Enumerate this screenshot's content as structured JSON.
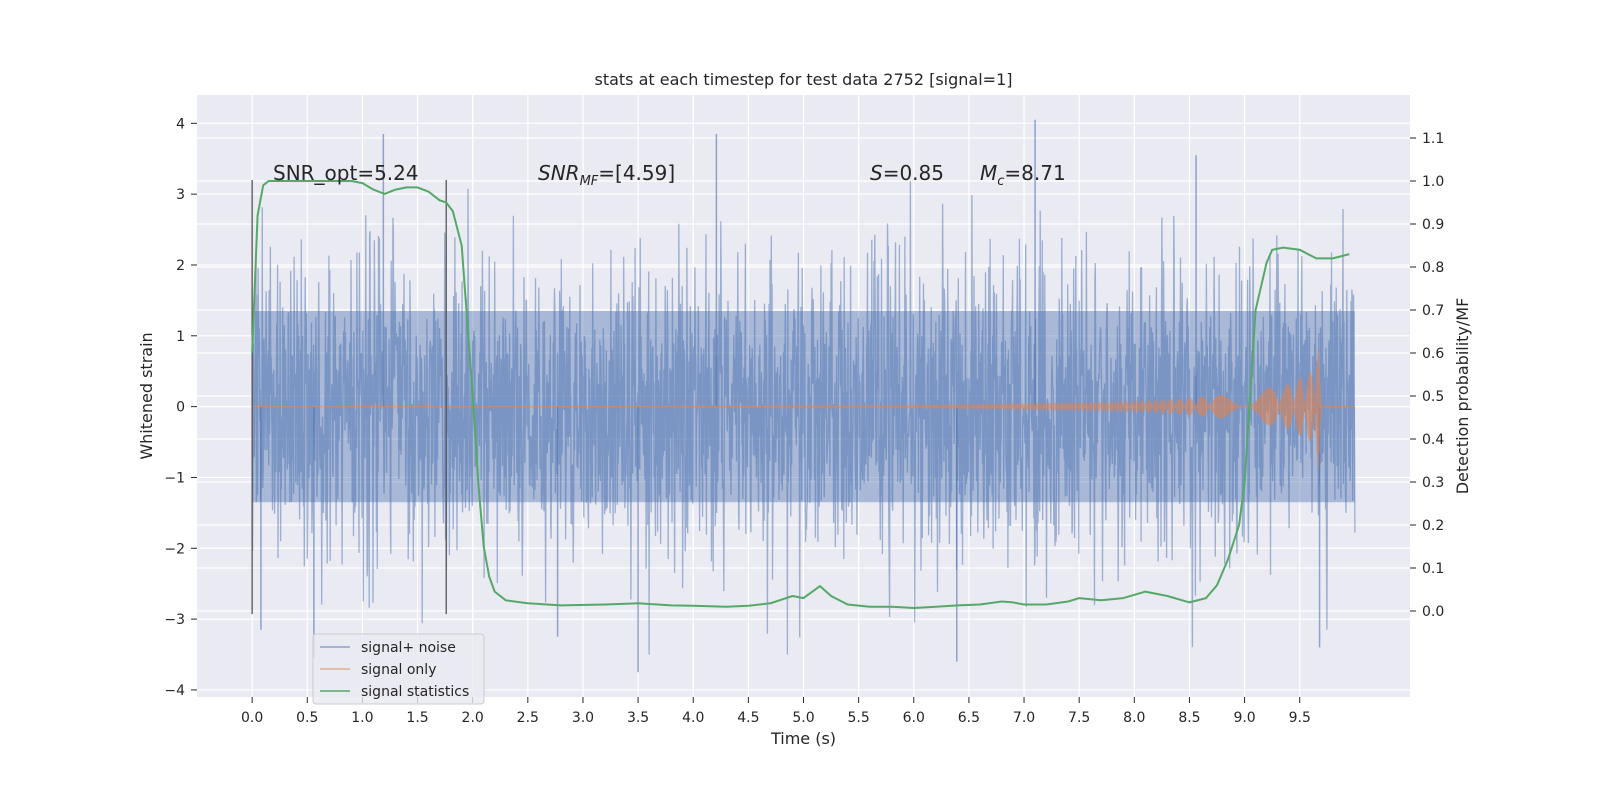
{
  "chart_data": {
    "type": "line",
    "title": "stats at each timestep for test data 2752 [signal=1]",
    "xlabel": "Time (s)",
    "ylabel": "Whitened strain",
    "y2label": "Detection probability/MF",
    "xlim": [
      -0.5,
      10.5
    ],
    "ylim": [
      -4.1,
      4.4
    ],
    "y2lim": [
      -0.2,
      1.2
    ],
    "xticks": [
      "0.0",
      "0.5",
      "1.0",
      "1.5",
      "2.0",
      "2.5",
      "3.0",
      "3.5",
      "4.0",
      "4.5",
      "5.0",
      "5.5",
      "6.0",
      "6.5",
      "7.0",
      "7.5",
      "8.0",
      "8.5",
      "9.0",
      "9.5"
    ],
    "yticks": [
      "4",
      "3",
      "2",
      "1",
      "0",
      "−1",
      "−2",
      "−3",
      "−4"
    ],
    "y2ticks": [
      "1.1",
      "1.0",
      "0.9",
      "0.8",
      "0.7",
      "0.6",
      "0.5",
      "0.4",
      "0.3",
      "0.2",
      "0.1",
      "0.0"
    ],
    "grid": true,
    "legend_position": "lower-left",
    "annotations": {
      "snr_opt": "SNR_opt=5.24",
      "snr_mf_base": "SNR",
      "snr_mf_sub": "MF",
      "snr_mf_val": "=[4.59]",
      "s_base": "S",
      "s_val": "=0.85",
      "mc_base": "M",
      "mc_sub": "c",
      "mc_val": "=8.71"
    },
    "vlines": [
      0.0,
      1.76
    ],
    "vline_ylim": [
      -2.93,
      3.2
    ],
    "series": [
      {
        "name": "signal+ noise",
        "color": "#4c72b0",
        "x_range": [
          0.0,
          10.0
        ],
        "envelope_sigma": 1.0,
        "peak_values": [
          {
            "x": 1.19,
            "y": 3.85
          },
          {
            "x": 4.21,
            "y": 3.85
          },
          {
            "x": 7.1,
            "y": 4.05
          },
          {
            "x": 8.56,
            "y": 3.55
          },
          {
            "x": 9.68,
            "y": -3.4
          },
          {
            "x": 3.5,
            "y": -3.75
          },
          {
            "x": 6.39,
            "y": -3.6
          },
          {
            "x": 0.08,
            "y": -3.15
          },
          {
            "x": 2.77,
            "y": -3.25
          },
          {
            "x": 0.56,
            "y": -3.55
          }
        ]
      },
      {
        "name": "signal only",
        "color": "#dd8452",
        "description_points": [
          {
            "x": 0.0,
            "amp": 0.0
          },
          {
            "x": 5.0,
            "amp": 0.01
          },
          {
            "x": 6.0,
            "amp": 0.02
          },
          {
            "x": 7.0,
            "amp": 0.05
          },
          {
            "x": 8.0,
            "amp": 0.08
          },
          {
            "x": 8.5,
            "amp": 0.12
          },
          {
            "x": 9.0,
            "amp": 0.2
          },
          {
            "x": 9.4,
            "amp": 0.32
          },
          {
            "x": 9.6,
            "amp": 0.5
          },
          {
            "x": 9.67,
            "amp": 0.85
          },
          {
            "x": 9.7,
            "amp": 0.02
          },
          {
            "x": 10.0,
            "amp": 0.0
          }
        ]
      },
      {
        "name": "signal statistics",
        "color": "#55a868",
        "axis": "right",
        "x": [
          0.0,
          0.05,
          0.1,
          0.15,
          0.2,
          0.3,
          0.4,
          0.5,
          0.7,
          0.9,
          1.0,
          1.1,
          1.2,
          1.3,
          1.4,
          1.5,
          1.6,
          1.7,
          1.76,
          1.82,
          1.9,
          2.0,
          2.05,
          2.1,
          2.15,
          2.2,
          2.3,
          2.5,
          2.8,
          3.2,
          3.5,
          3.8,
          4.0,
          4.3,
          4.5,
          4.7,
          4.9,
          5.0,
          5.15,
          5.25,
          5.4,
          5.6,
          5.8,
          6.0,
          6.2,
          6.4,
          6.6,
          6.8,
          6.9,
          7.0,
          7.2,
          7.4,
          7.5,
          7.7,
          7.9,
          8.1,
          8.3,
          8.5,
          8.65,
          8.75,
          8.85,
          8.95,
          9.0,
          9.05,
          9.1,
          9.2,
          9.25,
          9.35,
          9.5,
          9.65,
          9.8,
          9.95
        ],
        "y": [
          0.6,
          0.92,
          0.99,
          1.0,
          1.0,
          1.0,
          1.0,
          1.0,
          1.0,
          1.0,
          0.995,
          0.98,
          0.97,
          0.98,
          0.985,
          0.985,
          0.975,
          0.955,
          0.95,
          0.93,
          0.85,
          0.5,
          0.3,
          0.15,
          0.08,
          0.045,
          0.025,
          0.018,
          0.013,
          0.015,
          0.018,
          0.013,
          0.012,
          0.01,
          0.012,
          0.018,
          0.035,
          0.03,
          0.058,
          0.035,
          0.015,
          0.01,
          0.01,
          0.007,
          0.01,
          0.013,
          0.015,
          0.022,
          0.02,
          0.015,
          0.015,
          0.022,
          0.03,
          0.025,
          0.03,
          0.045,
          0.035,
          0.02,
          0.03,
          0.06,
          0.12,
          0.2,
          0.3,
          0.5,
          0.7,
          0.81,
          0.84,
          0.845,
          0.84,
          0.82,
          0.82,
          0.83
        ]
      }
    ]
  }
}
